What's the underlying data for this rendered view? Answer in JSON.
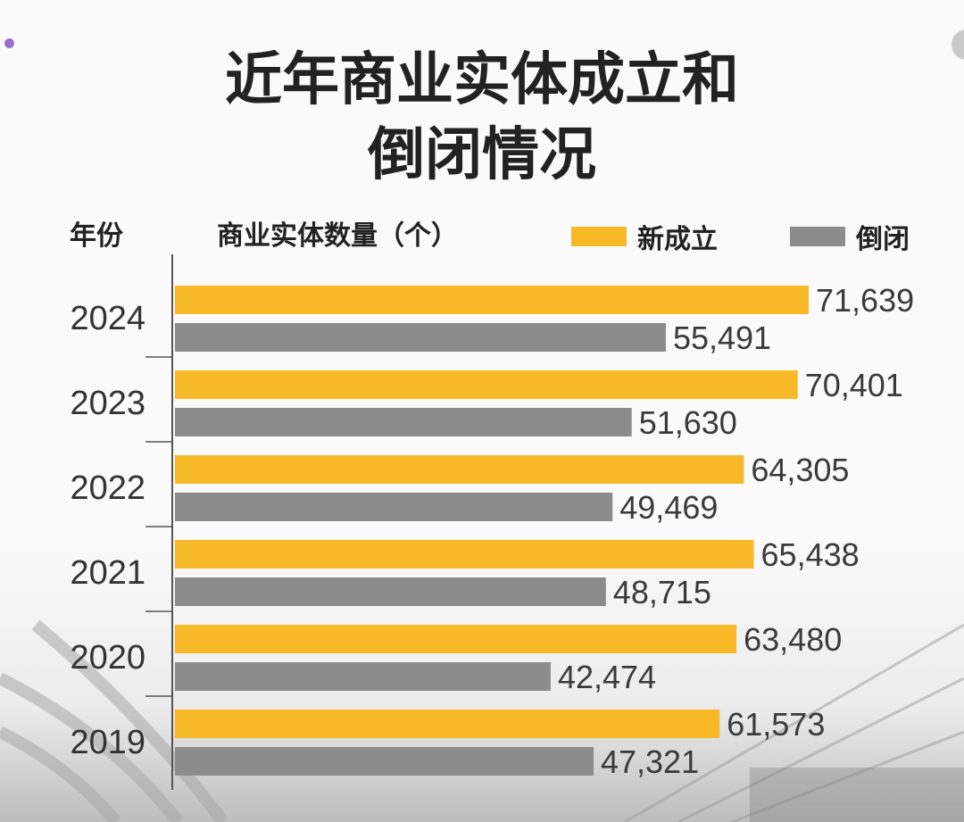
{
  "title_line1": "近年商业实体成立和",
  "title_line2": "倒闭情况",
  "header": {
    "year_label": "年份",
    "unit_label": "商业实体数量（个）"
  },
  "colors": {
    "new": "#f7b928",
    "closed": "#8c8c8c",
    "axis": "#555555"
  },
  "chart_data": {
    "type": "bar",
    "orientation": "horizontal",
    "title": "近年商业实体成立和倒闭情况",
    "xlabel": "商业实体数量（个）",
    "ylabel": "年份",
    "categories": [
      "2024",
      "2023",
      "2022",
      "2021",
      "2020",
      "2019"
    ],
    "series": [
      {
        "name": "新成立",
        "values": [
          71639,
          70401,
          64305,
          65438,
          63480,
          61573
        ],
        "labels": [
          "71,639",
          "70,401",
          "64,305",
          "65,438",
          "63,480",
          "61,573"
        ]
      },
      {
        "name": "倒闭",
        "values": [
          55491,
          51630,
          49469,
          48715,
          42474,
          47321
        ],
        "labels": [
          "55,491",
          "51,630",
          "49,469",
          "48,715",
          "42,474",
          "47,321"
        ]
      }
    ],
    "legend_position": "top-right",
    "grid": false
  }
}
